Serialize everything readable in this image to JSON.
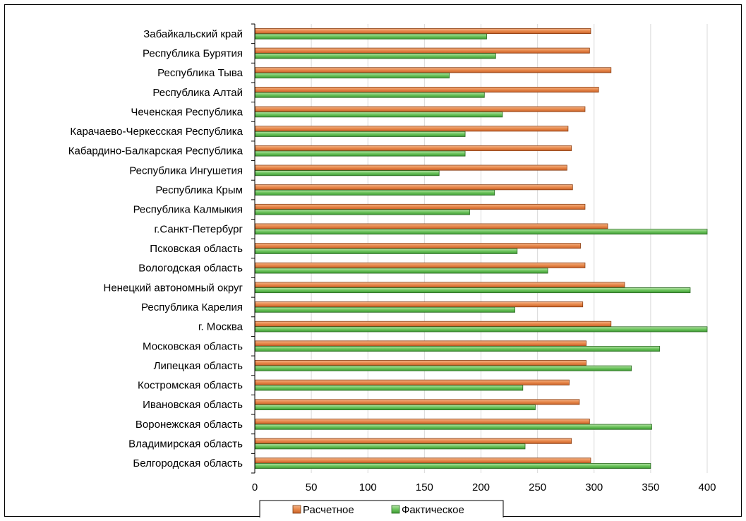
{
  "chart_data": {
    "type": "bar",
    "orientation": "horizontal",
    "categories": [
      "Забайкальский край",
      "Республика Бурятия",
      "Республика Тыва",
      "Республика Алтай",
      "Чеченская Республика",
      "Карачаево-Черкесская Республика",
      "Кабардино-Балкарская Республика",
      "Республика Ингушетия",
      "Республика Крым",
      "Республика Калмыкия",
      "г.Санкт-Петербург",
      "Псковская область",
      "Вологодская область",
      "Ненецкий автономный округ",
      "Республика Карелия",
      "г. Москва",
      "Московская область",
      "Липецкая область",
      "Костромская область",
      "Ивановская область",
      "Воронежская область",
      "Владимирская область",
      "Белгородская область"
    ],
    "series": [
      {
        "name": "Расчетное",
        "color": "#E07B39",
        "values": [
          297,
          296,
          315,
          304,
          292,
          277,
          280,
          276,
          281,
          292,
          312,
          288,
          292,
          327,
          290,
          315,
          293,
          293,
          278,
          287,
          296,
          280,
          297
        ]
      },
      {
        "name": "Фактическое",
        "color": "#4FB342",
        "values": [
          205,
          213,
          172,
          203,
          219,
          186,
          186,
          163,
          212,
          190,
          402,
          232,
          259,
          385,
          230,
          402,
          358,
          333,
          237,
          248,
          351,
          239,
          350
        ]
      }
    ],
    "xlim": [
      0,
      400
    ],
    "x_ticks": [
      0,
      50,
      100,
      150,
      200,
      250,
      300,
      350,
      400
    ],
    "x_tick_labels": [
      "0",
      "50",
      "100",
      "150",
      "200",
      "250",
      "300",
      "350",
      "400"
    ],
    "grid": "vertical",
    "legend_position": "bottom"
  },
  "legend": {
    "items": [
      {
        "label": "Расчетное",
        "color": "#E07B39"
      },
      {
        "label": "Фактическое",
        "color": "#4FB342"
      }
    ]
  }
}
